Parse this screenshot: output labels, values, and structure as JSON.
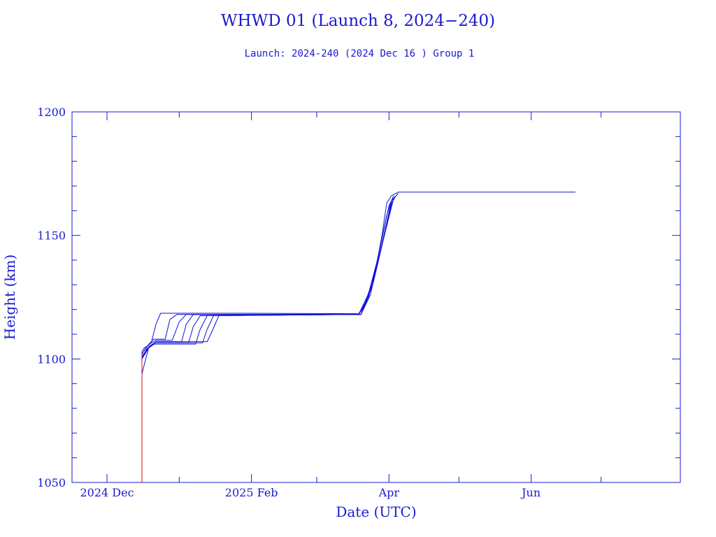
{
  "chart_data": {
    "type": "line",
    "title": "WHWD 01 (Launch 8, 2024−240)",
    "subtitle": "Launch: 2024-240  (2024 Dec 16 )  Group 1",
    "xlabel": "Date (UTC)",
    "ylabel": "Height (km)",
    "xlim": [
      "2024-11-16",
      "2025-08-04"
    ],
    "ylim": [
      1050,
      1200
    ],
    "x_ticks": [
      {
        "date": "2024-12-01",
        "label": "2024 Dec"
      },
      {
        "date": "2025-02-01",
        "label": "2025 Feb"
      },
      {
        "date": "2025-04-01",
        "label": "Apr"
      },
      {
        "date": "2025-06-01",
        "label": "Jun"
      }
    ],
    "x_minor_ticks": [
      "2025-01-01",
      "2025-03-01",
      "2025-05-01",
      "2025-07-01"
    ],
    "y_ticks": [
      1050,
      1100,
      1150,
      1200
    ],
    "grid": false,
    "colors": {
      "axis": "#1a1acd",
      "text": "#1a1acd",
      "line": "#1111d8",
      "launch": "#e0101a"
    },
    "launch_trace": {
      "color": "#e0101a",
      "x": [
        "2024-12-16",
        "2024-12-16"
      ],
      "y": [
        1050,
        1103
      ]
    },
    "series": [
      {
        "color": "#1111d8",
        "x": [
          "2024-12-16",
          "2024-12-17",
          "2024-12-18",
          "2024-12-20",
          "2024-12-22",
          "2024-12-24",
          "2025-01-29",
          "2025-03-19",
          "2025-03-22",
          "2025-03-26",
          "2025-03-29",
          "2025-03-31",
          "2025-04-02",
          "2025-04-05",
          "2025-06-20"
        ],
        "y": [
          1103,
          1104.5,
          1105,
          1106.5,
          1114,
          1118.5,
          1118.5,
          1118.3,
          1123,
          1135,
          1150,
          1163,
          1166,
          1167.5,
          1167.5
        ]
      },
      {
        "color": "#1111d8",
        "x": [
          "2024-12-16",
          "2024-12-18",
          "2024-12-21",
          "2024-12-26",
          "2024-12-28",
          "2024-12-31",
          "2025-03-19",
          "2025-03-22",
          "2025-03-27",
          "2025-03-31",
          "2025-04-02",
          "2025-04-05"
        ],
        "y": [
          1102,
          1105,
          1108,
          1108,
          1116,
          1118,
          1118,
          1122,
          1140,
          1158,
          1164,
          1167
        ]
      },
      {
        "color": "#1111d8",
        "x": [
          "2024-12-16",
          "2024-12-19",
          "2024-12-22",
          "2024-12-29",
          "2025-01-01",
          "2025-01-04",
          "2025-03-19",
          "2025-03-23",
          "2025-03-27",
          "2025-04-01",
          "2025-04-03"
        ],
        "y": [
          1102,
          1106,
          1107.5,
          1107.5,
          1115,
          1118,
          1118,
          1124,
          1140,
          1162,
          1166
        ]
      },
      {
        "color": "#1111d8",
        "x": [
          "2024-12-16",
          "2024-12-19",
          "2024-12-22",
          "2025-01-02",
          "2025-01-04",
          "2025-01-07",
          "2025-03-20",
          "2025-03-24",
          "2025-03-29",
          "2025-04-02",
          "2025-04-04"
        ],
        "y": [
          1101,
          1105,
          1107,
          1107,
          1114,
          1118,
          1118,
          1126,
          1146,
          1164,
          1166
        ]
      },
      {
        "color": "#1111d8",
        "x": [
          "2024-12-16",
          "2024-12-19",
          "2024-12-22",
          "2025-01-05",
          "2025-01-07",
          "2025-01-10",
          "2025-03-20",
          "2025-03-25",
          "2025-03-30",
          "2025-04-02",
          "2025-04-04"
        ],
        "y": [
          1101,
          1104.5,
          1106.5,
          1106.5,
          1113,
          1117.5,
          1118,
          1130,
          1150,
          1163,
          1166
        ]
      },
      {
        "color": "#1111d8",
        "x": [
          "2024-12-16",
          "2024-12-18",
          "2024-12-21",
          "2025-01-08",
          "2025-01-10",
          "2025-01-13",
          "2025-03-20",
          "2025-03-25",
          "2025-03-31",
          "2025-04-03"
        ],
        "y": [
          1100,
          1104,
          1106,
          1106,
          1112,
          1117.5,
          1118,
          1130,
          1155,
          1165
        ]
      },
      {
        "color": "#1111d8",
        "x": [
          "2024-12-16",
          "2024-12-19",
          "2024-12-22",
          "2025-01-11",
          "2025-01-13",
          "2025-01-16",
          "2025-03-20",
          "2025-03-26",
          "2025-03-31",
          "2025-04-03"
        ],
        "y": [
          1100,
          1104.5,
          1106.5,
          1106.5,
          1112,
          1118,
          1118,
          1134,
          1155,
          1165
        ]
      },
      {
        "color": "#1111d8",
        "x": [
          "2024-12-16",
          "2024-12-19",
          "2024-12-22",
          "2025-01-13",
          "2025-01-15",
          "2025-01-18",
          "2025-03-19",
          "2025-03-24",
          "2025-03-30",
          "2025-04-03"
        ],
        "y": [
          1094,
          1105,
          1107,
          1107,
          1111,
          1117.5,
          1118,
          1128,
          1150,
          1165
        ]
      }
    ]
  }
}
